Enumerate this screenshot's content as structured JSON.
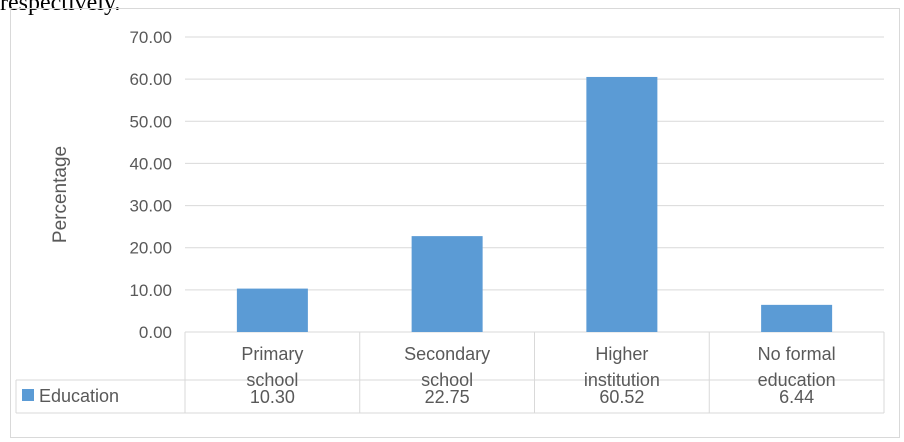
{
  "page": {
    "top_text": "respectively."
  },
  "chart_data": {
    "type": "bar",
    "categories": [
      [
        "Primary",
        "school"
      ],
      [
        "Secondary",
        "school"
      ],
      [
        "Higher",
        "institution"
      ],
      [
        "No formal",
        "education"
      ]
    ],
    "series": [
      {
        "name": "Education",
        "values": [
          10.3,
          22.75,
          60.52,
          6.44
        ],
        "color": "#5b9bd5"
      }
    ],
    "data_table_values": [
      "10.30",
      "22.75",
      "60.52",
      "6.44"
    ],
    "ylabel": "Percentage",
    "ylim": [
      0,
      70
    ],
    "yticks": [
      "0.00",
      "10.00",
      "20.00",
      "30.00",
      "40.00",
      "50.00",
      "60.00",
      "70.00"
    ],
    "grid": true,
    "legend": "data-table"
  }
}
